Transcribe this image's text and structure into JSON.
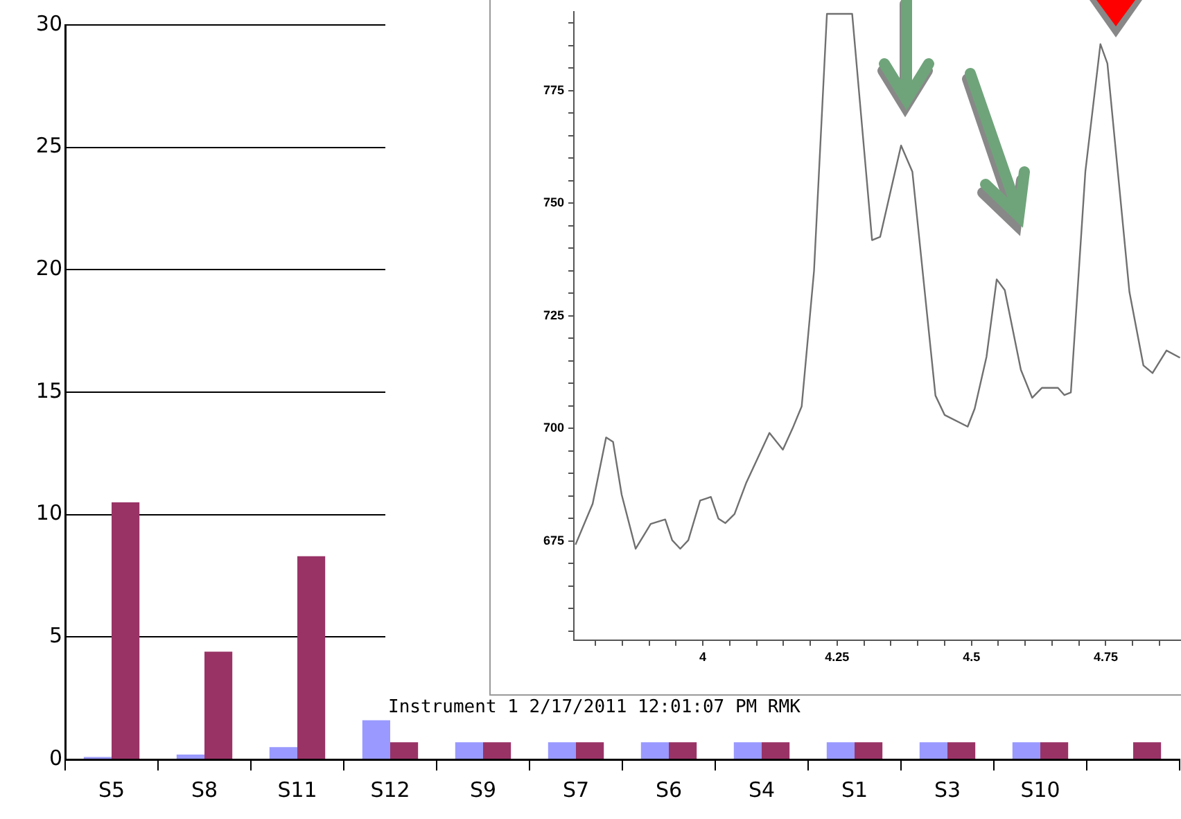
{
  "chart_data": [
    {
      "type": "bar",
      "categories": [
        "S5",
        "S8",
        "S11",
        "S12",
        "S9",
        "S7",
        "S6",
        "S4",
        "S1",
        "S3",
        "S10",
        null
      ],
      "series": [
        {
          "color": "#9999ff",
          "values": [
            0.1,
            0.2,
            0.5,
            1.6,
            0.7,
            0.7,
            0.7,
            0.7,
            0.7,
            0.7,
            0.7,
            null
          ]
        },
        {
          "color": "#993366",
          "values": [
            10.5,
            4.4,
            8.3,
            0.7,
            0.7,
            0.7,
            0.7,
            0.7,
            0.7,
            0.7,
            0.7,
            0.7
          ]
        }
      ],
      "ylim": [
        0,
        30
      ],
      "yticks": [
        0,
        5,
        10,
        15,
        20,
        25,
        30
      ],
      "grid": "y",
      "legend": false
    },
    {
      "type": "line",
      "color": "#707070",
      "marker": "none",
      "grid": false,
      "x": [
        3.763,
        3.795,
        3.82,
        3.833,
        3.849,
        3.875,
        3.903,
        3.93,
        3.943,
        3.958,
        3.973,
        3.995,
        4.015,
        4.029,
        4.042,
        4.059,
        4.081,
        4.124,
        4.149,
        4.167,
        4.184,
        4.207,
        4.231,
        4.278,
        4.315,
        4.33,
        4.369,
        4.39,
        4.433,
        4.45,
        4.493,
        4.506,
        4.528,
        4.547,
        4.562,
        4.592,
        4.613,
        4.631,
        4.661,
        4.673,
        4.685,
        4.712,
        4.74,
        4.753,
        4.794,
        4.82,
        4.837,
        4.863,
        4.888
      ],
      "values": [
        674.2,
        683.3,
        698,
        697,
        685.3,
        673.3,
        678.8,
        679.8,
        675.2,
        673.3,
        675.2,
        684,
        684.8,
        680,
        679,
        681,
        688,
        699,
        695.3,
        700,
        704.9,
        735,
        792,
        792,
        741.8,
        742.5,
        762.8,
        757,
        707.3,
        703,
        700.4,
        704.4,
        715.9,
        733.1,
        730.7,
        713,
        706.8,
        709,
        709,
        707.4,
        708,
        757,
        785.3,
        781,
        730.3,
        714,
        712.3,
        717.3,
        715.7
      ],
      "xlim": [
        3.76,
        4.89
      ],
      "ylim": [
        653,
        792.5
      ],
      "xticks": [
        {
          "value": 3.8,
          "label": null
        },
        {
          "value": 3.85,
          "label": null
        },
        {
          "value": 3.9,
          "label": null
        },
        {
          "value": 3.95,
          "label": null
        },
        4,
        {
          "value": 4.05,
          "label": null
        },
        {
          "value": 4.1,
          "label": null
        },
        {
          "value": 4.15,
          "label": null
        },
        {
          "value": 4.2,
          "label": null
        },
        4.25,
        {
          "value": 4.3,
          "label": null
        },
        {
          "value": 4.35,
          "label": null
        },
        {
          "value": 4.4,
          "label": null
        },
        {
          "value": 4.45,
          "label": null
        },
        4.5,
        {
          "value": 4.55,
          "label": null
        },
        {
          "value": 4.6,
          "label": null
        },
        {
          "value": 4.65,
          "label": null
        },
        {
          "value": 4.7,
          "label": null
        },
        4.75,
        {
          "value": 4.8,
          "label": null
        },
        {
          "value": 4.85,
          "label": null
        }
      ],
      "yticks": [
        {
          "value": 655,
          "label": null
        },
        {
          "value": 660,
          "label": null
        },
        {
          "value": 665,
          "label": null
        },
        {
          "value": 670,
          "label": null
        },
        675,
        {
          "value": 680,
          "label": null
        },
        {
          "value": 685,
          "label": null
        },
        {
          "value": 690,
          "label": null
        },
        {
          "value": 695,
          "label": null
        },
        700,
        {
          "value": 705,
          "label": null
        },
        {
          "value": 710,
          "label": null
        },
        {
          "value": 715,
          "label": null
        },
        {
          "value": 720,
          "label": null
        },
        725,
        {
          "value": 730,
          "label": null
        },
        {
          "value": 735,
          "label": null
        },
        {
          "value": 740,
          "label": null
        },
        {
          "value": 745,
          "label": null
        },
        750,
        {
          "value": 755,
          "label": null
        },
        {
          "value": 760,
          "label": null
        },
        {
          "value": 765,
          "label": null
        },
        {
          "value": 770,
          "label": null
        },
        775,
        {
          "value": 780,
          "label": null
        },
        {
          "value": 785,
          "label": null
        },
        {
          "value": 790,
          "label": null
        }
      ],
      "annotations": [
        "Instrument 1 2/17/2011 12:01:07 PM RMK"
      ]
    }
  ]
}
